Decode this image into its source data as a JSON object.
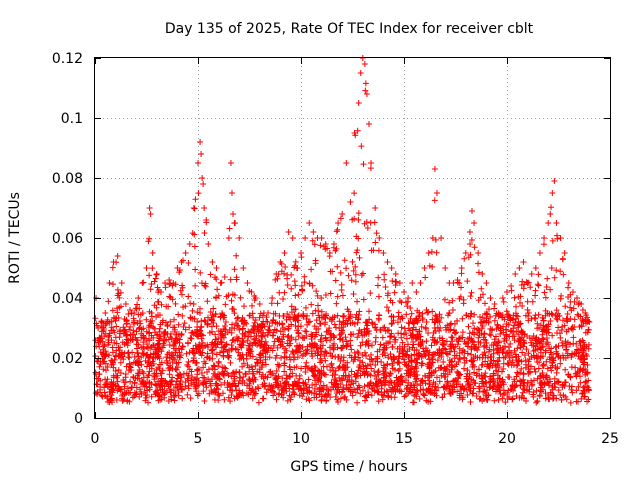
{
  "chart_data": {
    "type": "scatter",
    "title": "Day 135 of 2025, Rate Of TEC Index for receiver cblt",
    "xlabel": "GPS time / hours",
    "ylabel": "ROTI / TECUs",
    "xlim": [
      0,
      25
    ],
    "ylim": [
      0,
      0.12
    ],
    "xticks": [
      0,
      5,
      10,
      15,
      20,
      25
    ],
    "yticks": [
      0,
      0.02,
      0.04,
      0.06,
      0.08,
      0.1,
      0.12
    ],
    "xtick_labels": [
      "0",
      "5",
      "10",
      "15",
      "20",
      "25"
    ],
    "ytick_labels": [
      "0",
      "0.02",
      "0.04",
      "0.06",
      "0.08",
      "0.1",
      "0.12"
    ],
    "grid": true,
    "marker": "+",
    "series": [
      {
        "name": "ROTI",
        "color": "#ff0000",
        "x": [
          0.05,
          0.15,
          0.3,
          0.5,
          0.7,
          0.9,
          1.1,
          1.3,
          1.5,
          1.7,
          1.9,
          2.1,
          2.3,
          2.5,
          2.65,
          2.7,
          2.8,
          3.0,
          3.2,
          3.4,
          3.6,
          3.8,
          4.0,
          4.2,
          4.4,
          4.6,
          4.8,
          5.0,
          5.1,
          5.15,
          5.2,
          5.25,
          5.3,
          5.4,
          5.5,
          5.7,
          5.9,
          6.1,
          6.3,
          6.5,
          6.6,
          6.65,
          6.7,
          6.8,
          7.0,
          7.2,
          7.4,
          7.6,
          7.8,
          8.0,
          8.2,
          8.4,
          8.6,
          8.8,
          9.0,
          9.2,
          9.4,
          9.6,
          9.8,
          10.0,
          10.2,
          10.4,
          10.6,
          10.8,
          11.0,
          11.2,
          11.4,
          11.6,
          11.8,
          12.0,
          12.2,
          12.4,
          12.6,
          12.8,
          12.9,
          13.0,
          13.1,
          13.2,
          13.3,
          13.4,
          13.6,
          13.8,
          14.0,
          14.2,
          14.4,
          14.6,
          14.8,
          15.0,
          15.2,
          15.4,
          15.6,
          15.8,
          16.0,
          16.2,
          16.4,
          16.5,
          16.6,
          16.8,
          17.0,
          17.2,
          17.4,
          17.6,
          17.8,
          18.0,
          18.2,
          18.3,
          18.4,
          18.6,
          18.8,
          19.0,
          19.2,
          19.4,
          19.6,
          19.8,
          20.0,
          20.2,
          20.4,
          20.6,
          20.8,
          21.0,
          21.2,
          21.4,
          21.6,
          21.8,
          22.0,
          22.1,
          22.2,
          22.3,
          22.4,
          22.6,
          22.8,
          23.0,
          23.2,
          23.4,
          23.6,
          23.8,
          24.0
        ],
        "y": [
          0.04,
          0.03,
          0.032,
          0.035,
          0.045,
          0.052,
          0.054,
          0.045,
          0.038,
          0.036,
          0.035,
          0.04,
          0.045,
          0.05,
          0.07,
          0.068,
          0.055,
          0.048,
          0.042,
          0.045,
          0.046,
          0.045,
          0.05,
          0.052,
          0.055,
          0.058,
          0.07,
          0.085,
          0.092,
          0.088,
          0.08,
          0.078,
          0.07,
          0.066,
          0.058,
          0.052,
          0.05,
          0.045,
          0.047,
          0.06,
          0.085,
          0.075,
          0.068,
          0.065,
          0.06,
          0.05,
          0.045,
          0.042,
          0.04,
          0.038,
          0.035,
          0.035,
          0.04,
          0.048,
          0.052,
          0.055,
          0.062,
          0.06,
          0.05,
          0.055,
          0.06,
          0.065,
          0.062,
          0.06,
          0.06,
          0.058,
          0.055,
          0.058,
          0.065,
          0.068,
          0.085,
          0.072,
          0.095,
          0.105,
          0.115,
          0.12,
          0.118,
          0.108,
          0.098,
          0.085,
          0.07,
          0.06,
          0.055,
          0.052,
          0.05,
          0.048,
          0.045,
          0.042,
          0.04,
          0.045,
          0.042,
          0.045,
          0.05,
          0.055,
          0.06,
          0.083,
          0.075,
          0.06,
          0.05,
          0.045,
          0.045,
          0.046,
          0.05,
          0.055,
          0.062,
          0.069,
          0.065,
          0.055,
          0.048,
          0.045,
          0.04,
          0.038,
          0.035,
          0.04,
          0.042,
          0.044,
          0.048,
          0.05,
          0.052,
          0.045,
          0.048,
          0.05,
          0.055,
          0.06,
          0.065,
          0.068,
          0.075,
          0.079,
          0.065,
          0.06,
          0.055,
          0.045,
          0.042,
          0.04,
          0.038,
          0.035,
          0.032
        ]
      }
    ]
  }
}
